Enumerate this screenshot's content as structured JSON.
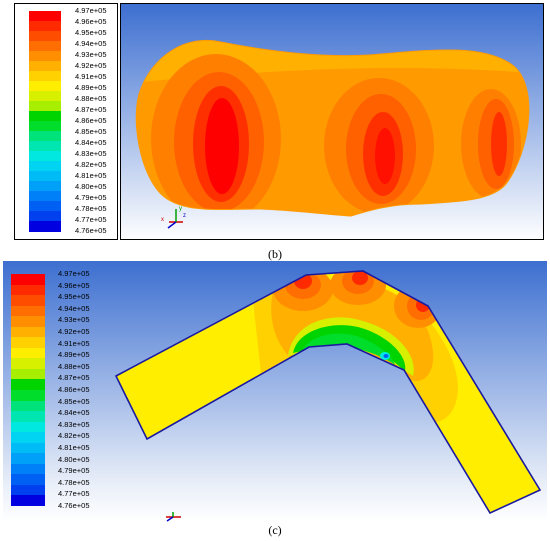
{
  "colormap": [
    "#ff0000",
    "#ff2a00",
    "#ff4d00",
    "#ff6e00",
    "#ff8f00",
    "#ffb000",
    "#ffd100",
    "#ffee00",
    "#d6f000",
    "#a8ee00",
    "#00d400",
    "#00dd2a",
    "#00e27a",
    "#00e6b0",
    "#00e8e0",
    "#00d4f2",
    "#00bcf6",
    "#00a0f8",
    "#0080f8",
    "#0060f4",
    "#0040ef",
    "#0000e0"
  ],
  "panel_b": {
    "caption": "(b)",
    "legend": [
      "4.97e+05",
      "4.96e+05",
      "4.95e+05",
      "4.94e+05",
      "4.93e+05",
      "4.92e+05",
      "4.91e+05",
      "4.89e+05",
      "4.88e+05",
      "4.87e+05",
      "4.86e+05",
      "4.85e+05",
      "4.84e+05",
      "4.83e+05",
      "4.82e+05",
      "4.81e+05",
      "4.80e+05",
      "4.79e+05",
      "4.78e+05",
      "4.77e+05",
      "4.76e+05"
    ]
  },
  "panel_c": {
    "caption": "(c)",
    "legend": [
      "4.97e+05",
      "4.96e+05",
      "4.95e+05",
      "4.94e+05",
      "4.93e+05",
      "4.92e+05",
      "4.91e+05",
      "4.89e+05",
      "4.88e+05",
      "4.87e+05",
      "4.86e+05",
      "4.85e+05",
      "4.84e+05",
      "4.83e+05",
      "4.82e+05",
      "4.81e+05",
      "4.80e+05",
      "4.79e+05",
      "4.78e+05",
      "4.77e+05",
      "4.76e+05"
    ]
  },
  "axis_labels": {
    "x": "x",
    "y": "y",
    "z": "z"
  },
  "colors": {
    "bg_top": "#3d6fd0",
    "bg_bottom": "#ffffff",
    "outline": "#1a1aa0"
  }
}
